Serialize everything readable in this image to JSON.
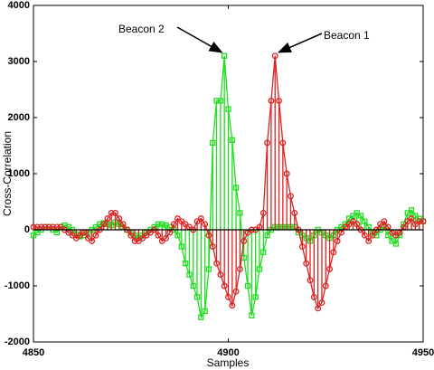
{
  "chart_data": {
    "type": "stem",
    "xlabel": "Samples",
    "ylabel": "Cross-Correlation",
    "x": [
      4850,
      4851,
      4852,
      4853,
      4854,
      4855,
      4856,
      4857,
      4858,
      4859,
      4860,
      4861,
      4862,
      4863,
      4864,
      4865,
      4866,
      4867,
      4868,
      4869,
      4870,
      4871,
      4872,
      4873,
      4874,
      4875,
      4876,
      4877,
      4878,
      4879,
      4880,
      4881,
      4882,
      4883,
      4884,
      4885,
      4886,
      4887,
      4888,
      4889,
      4890,
      4891,
      4892,
      4893,
      4894,
      4895,
      4896,
      4897,
      4898,
      4899,
      4900,
      4901,
      4902,
      4903,
      4904,
      4905,
      4906,
      4907,
      4908,
      4909,
      4910,
      4911,
      4912,
      4913,
      4914,
      4915,
      4916,
      4917,
      4918,
      4919,
      4920,
      4921,
      4922,
      4923,
      4924,
      4925,
      4926,
      4927,
      4928,
      4929,
      4930,
      4931,
      4932,
      4933,
      4934,
      4935,
      4936,
      4937,
      4938,
      4939,
      4940,
      4941,
      4942,
      4943,
      4944,
      4945,
      4946,
      4947,
      4948,
      4949,
      4950
    ],
    "series": [
      {
        "name": "Beacon 2",
        "color": "#22dd22",
        "marker": "square",
        "values": [
          -100,
          -50,
          0,
          50,
          50,
          0,
          -50,
          50,
          80,
          50,
          0,
          -80,
          -120,
          -100,
          -50,
          0,
          50,
          100,
          120,
          100,
          80,
          130,
          100,
          50,
          0,
          -50,
          -100,
          -150,
          -100,
          -50,
          0,
          50,
          100,
          100,
          80,
          50,
          0,
          -100,
          -300,
          -600,
          -800,
          -1000,
          -1200,
          -1560,
          -1450,
          -700,
          1550,
          2300,
          2300,
          3100,
          2150,
          1600,
          750,
          300,
          -500,
          -1000,
          -1530,
          -1200,
          -700,
          -400,
          -100,
          0,
          50,
          50,
          50,
          50,
          50,
          50,
          -50,
          -100,
          -150,
          -200,
          -100,
          0,
          -50,
          -100,
          -150,
          -100,
          0,
          50,
          100,
          200,
          250,
          300,
          250,
          150,
          50,
          -50,
          -100,
          0,
          50,
          -100,
          -200,
          -250,
          -100,
          100,
          300,
          350,
          250,
          200,
          150
        ]
      },
      {
        "name": "Beacon 1",
        "color": "#dd2222",
        "marker": "circle",
        "values": [
          50,
          50,
          50,
          50,
          50,
          50,
          50,
          50,
          0,
          -50,
          -100,
          -150,
          -100,
          -50,
          -150,
          -200,
          -100,
          0,
          100,
          200,
          300,
          300,
          200,
          100,
          0,
          -100,
          -200,
          -200,
          -150,
          -100,
          -50,
          0,
          -100,
          -200,
          -150,
          -50,
          100,
          200,
          150,
          100,
          50,
          0,
          150,
          200,
          100,
          -100,
          -300,
          -600,
          -800,
          -1000,
          -1200,
          -1350,
          -1100,
          -700,
          -200,
          -50,
          0,
          0,
          50,
          300,
          1550,
          2300,
          3100,
          2300,
          1550,
          1000,
          600,
          300,
          0,
          -300,
          -600,
          -900,
          -1200,
          -1400,
          -1300,
          -1000,
          -700,
          -400,
          -200,
          -50,
          50,
          100,
          150,
          100,
          0,
          -100,
          -200,
          -100,
          0,
          100,
          150,
          50,
          -50,
          -100,
          -50,
          50,
          150,
          200,
          100,
          150,
          150
        ]
      }
    ],
    "xlim": [
      4850,
      4950
    ],
    "xticks": [
      4850,
      4900,
      4950
    ],
    "ylim": [
      -2000,
      4000
    ],
    "yticks": [
      -2000,
      -1000,
      0,
      1000,
      2000,
      3000,
      4000
    ],
    "grid": false
  }
}
